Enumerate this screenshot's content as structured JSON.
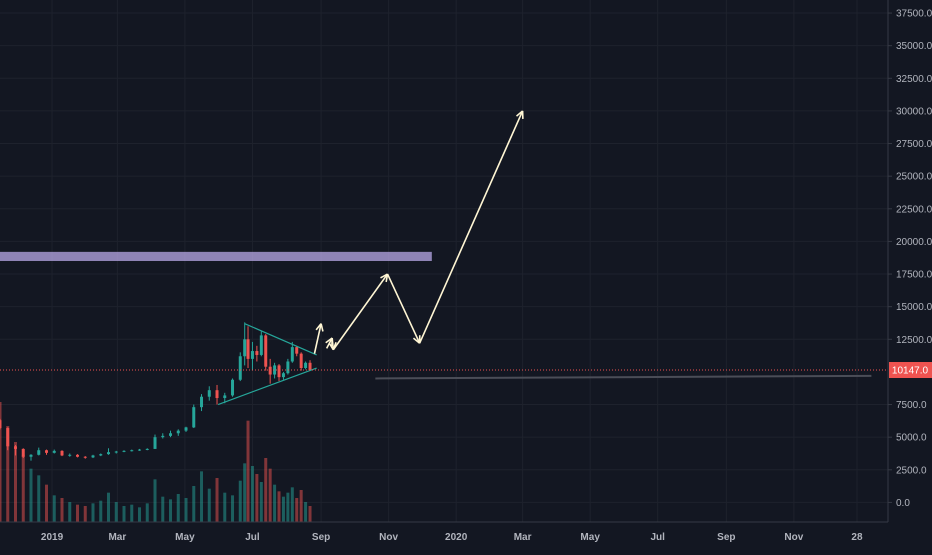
{
  "chart_data": {
    "type": "candlestick",
    "y_axis": {
      "ticks": [
        "37500.0",
        "35000.0",
        "32500.0",
        "30000.0",
        "27500.0",
        "25000.0",
        "22500.0",
        "20000.0",
        "17500.0",
        "15000.0",
        "12500.0",
        "7500.0",
        "5000.0",
        "2500.0",
        "0.0"
      ],
      "tick_values": [
        37500,
        35000,
        32500,
        30000,
        27500,
        25000,
        22500,
        20000,
        17500,
        15000,
        12500,
        7500,
        5000,
        2500,
        0
      ],
      "ylim": [
        -1500,
        38500
      ],
      "position": "right"
    },
    "x_axis": {
      "ticks": [
        "2019",
        "Mar",
        "May",
        "Jul",
        "Sep",
        "Nov",
        "2020",
        "Mar",
        "May",
        "Jul",
        "Sep",
        "Nov",
        "28"
      ],
      "tick_dates": [
        "2019-01-01",
        "2019-03-01",
        "2019-05-01",
        "2019-07-01",
        "2019-09-01",
        "2019-11-01",
        "2020-01-01",
        "2020-03-01",
        "2020-05-01",
        "2020-07-01",
        "2020-09-01",
        "2020-11-01",
        "2020-12-28"
      ],
      "xlim": [
        "2018-11-15",
        "2021-01-25"
      ]
    },
    "last_price": {
      "value": 10147,
      "label": "10147.0",
      "color": "#ef5350"
    },
    "price_candles": [
      [
        "2018-11-15",
        6300,
        6400,
        5600,
        5700
      ],
      [
        "2018-11-22",
        5700,
        5750,
        4000,
        4300
      ],
      [
        "2018-11-29",
        4300,
        4400,
        3600,
        4100
      ],
      [
        "2018-12-06",
        4100,
        4150,
        3400,
        3500
      ],
      [
        "2018-12-13",
        3500,
        3700,
        3200,
        3650
      ],
      [
        "2018-12-20",
        3650,
        4200,
        3600,
        4000
      ],
      [
        "2018-12-27",
        4000,
        4050,
        3650,
        3800
      ],
      [
        "2019-01-03",
        3800,
        4050,
        3750,
        3950
      ],
      [
        "2019-01-10",
        3950,
        4000,
        3550,
        3600
      ],
      [
        "2019-01-17",
        3600,
        3750,
        3500,
        3650
      ],
      [
        "2019-01-24",
        3650,
        3700,
        3450,
        3500
      ],
      [
        "2019-01-31",
        3500,
        3550,
        3350,
        3450
      ],
      [
        "2019-02-07",
        3450,
        3650,
        3400,
        3600
      ],
      [
        "2019-02-14",
        3600,
        3750,
        3550,
        3700
      ],
      [
        "2019-02-21",
        3700,
        4150,
        3650,
        3850
      ],
      [
        "2019-02-28",
        3850,
        3950,
        3750,
        3900
      ],
      [
        "2019-03-07",
        3900,
        4000,
        3850,
        3950
      ],
      [
        "2019-03-14",
        3950,
        4050,
        3900,
        4000
      ],
      [
        "2019-03-21",
        4000,
        4100,
        3950,
        4050
      ],
      [
        "2019-03-28",
        4050,
        4150,
        4000,
        4100
      ],
      [
        "2019-04-04",
        4100,
        5200,
        4100,
        5000
      ],
      [
        "2019-04-11",
        5000,
        5300,
        4900,
        5100
      ],
      [
        "2019-04-18",
        5100,
        5500,
        5000,
        5300
      ],
      [
        "2019-04-25",
        5300,
        5600,
        5100,
        5500
      ],
      [
        "2019-05-02",
        5500,
        5800,
        5400,
        5750
      ],
      [
        "2019-05-09",
        5750,
        7500,
        5700,
        7300
      ],
      [
        "2019-05-16",
        7300,
        8300,
        7000,
        8100
      ],
      [
        "2019-05-23",
        8100,
        8900,
        7800,
        8600
      ],
      [
        "2019-05-30",
        8600,
        9000,
        7500,
        8000
      ],
      [
        "2019-06-06",
        8000,
        8400,
        7600,
        8200
      ],
      [
        "2019-06-13",
        8200,
        9500,
        8100,
        9400
      ],
      [
        "2019-06-20",
        9400,
        11500,
        9300,
        11200
      ],
      [
        "2019-06-24",
        11200,
        13800,
        10500,
        12500
      ],
      [
        "2019-06-27",
        12500,
        13500,
        10300,
        11000
      ],
      [
        "2019-07-01",
        11000,
        12300,
        10100,
        11600
      ],
      [
        "2019-07-05",
        11600,
        12000,
        10800,
        11300
      ],
      [
        "2019-07-09",
        11300,
        13100,
        11200,
        12800
      ],
      [
        "2019-07-13",
        12800,
        12900,
        10100,
        10400
      ],
      [
        "2019-07-17",
        10400,
        11000,
        9100,
        9800
      ],
      [
        "2019-07-21",
        9800,
        10700,
        9500,
        10500
      ],
      [
        "2019-07-25",
        10500,
        10600,
        9300,
        9600
      ],
      [
        "2019-07-29",
        9600,
        10000,
        9400,
        9900
      ],
      [
        "2019-08-02",
        9900,
        11000,
        9800,
        10800
      ],
      [
        "2019-08-06",
        10800,
        12300,
        10700,
        11900
      ],
      [
        "2019-08-10",
        11900,
        12000,
        11200,
        11400
      ],
      [
        "2019-08-14",
        11400,
        11500,
        10100,
        10300
      ],
      [
        "2019-08-18",
        10300,
        10800,
        10200,
        10700
      ],
      [
        "2019-08-22",
        10700,
        10900,
        10100,
        10147
      ]
    ],
    "volume_bars": [
      [
        "2018-11-15",
        9000
      ],
      [
        "2018-11-22",
        7200
      ],
      [
        "2018-11-29",
        6000
      ],
      [
        "2018-12-06",
        5000
      ],
      [
        "2018-12-13",
        4000
      ],
      [
        "2018-12-20",
        3500
      ],
      [
        "2018-12-27",
        2800
      ],
      [
        "2019-01-03",
        2000
      ],
      [
        "2019-01-10",
        1800
      ],
      [
        "2019-01-17",
        1500
      ],
      [
        "2019-01-24",
        1300
      ],
      [
        "2019-01-31",
        1200
      ],
      [
        "2019-02-07",
        1400
      ],
      [
        "2019-02-14",
        1600
      ],
      [
        "2019-02-21",
        2200
      ],
      [
        "2019-02-28",
        1500
      ],
      [
        "2019-03-07",
        1200
      ],
      [
        "2019-03-14",
        1300
      ],
      [
        "2019-03-21",
        1100
      ],
      [
        "2019-03-28",
        1400
      ],
      [
        "2019-04-04",
        3200
      ],
      [
        "2019-04-11",
        1900
      ],
      [
        "2019-04-18",
        1700
      ],
      [
        "2019-04-25",
        2100
      ],
      [
        "2019-05-02",
        1800
      ],
      [
        "2019-05-09",
        2700
      ],
      [
        "2019-05-16",
        3800
      ],
      [
        "2019-05-23",
        2500
      ],
      [
        "2019-05-30",
        3300
      ],
      [
        "2019-06-06",
        2200
      ],
      [
        "2019-06-13",
        2000
      ],
      [
        "2019-06-20",
        3100
      ],
      [
        "2019-06-24",
        4400
      ],
      [
        "2019-06-27",
        7600
      ],
      [
        "2019-07-01",
        4200
      ],
      [
        "2019-07-05",
        3600
      ],
      [
        "2019-07-09",
        3000
      ],
      [
        "2019-07-13",
        4800
      ],
      [
        "2019-07-17",
        4000
      ],
      [
        "2019-07-21",
        2800
      ],
      [
        "2019-07-25",
        2300
      ],
      [
        "2019-07-29",
        1900
      ],
      [
        "2019-08-02",
        2200
      ],
      [
        "2019-08-06",
        2600
      ],
      [
        "2019-08-10",
        1800
      ],
      [
        "2019-08-14",
        2400
      ],
      [
        "2019-08-18",
        1500
      ],
      [
        "2019-08-22",
        1200
      ]
    ],
    "annotations": {
      "resistance_zone": {
        "y_low": 18500,
        "y_high": 19200,
        "from": "2018-11-15",
        "to": "2019-12-10",
        "color": "#b9a9e8"
      },
      "triangle_upper": {
        "points": [
          [
            "2019-06-24",
            13700
          ],
          [
            "2019-08-28",
            11300
          ]
        ],
        "color": "#26a69a"
      },
      "triangle_lower": {
        "points": [
          [
            "2019-05-31",
            7500
          ],
          [
            "2019-08-28",
            10300
          ]
        ],
        "color": "#26a69a"
      },
      "projection_path": {
        "color": "#fff6d4",
        "points": [
          [
            "2019-08-26",
            11400
          ],
          [
            "2019-09-01",
            13700
          ],
          [
            "2019-09-06",
            11800
          ],
          [
            "2019-09-11",
            12600
          ],
          [
            "2019-09-12",
            11700
          ],
          [
            "2019-10-31",
            17500
          ],
          [
            "2019-11-29",
            12200
          ],
          [
            "2020-03-01",
            30000
          ]
        ]
      },
      "long_line": {
        "points": [
          [
            "2019-10-20",
            9500
          ],
          [
            "2021-01-10",
            9700
          ]
        ],
        "color": "#4a4d57"
      }
    }
  }
}
